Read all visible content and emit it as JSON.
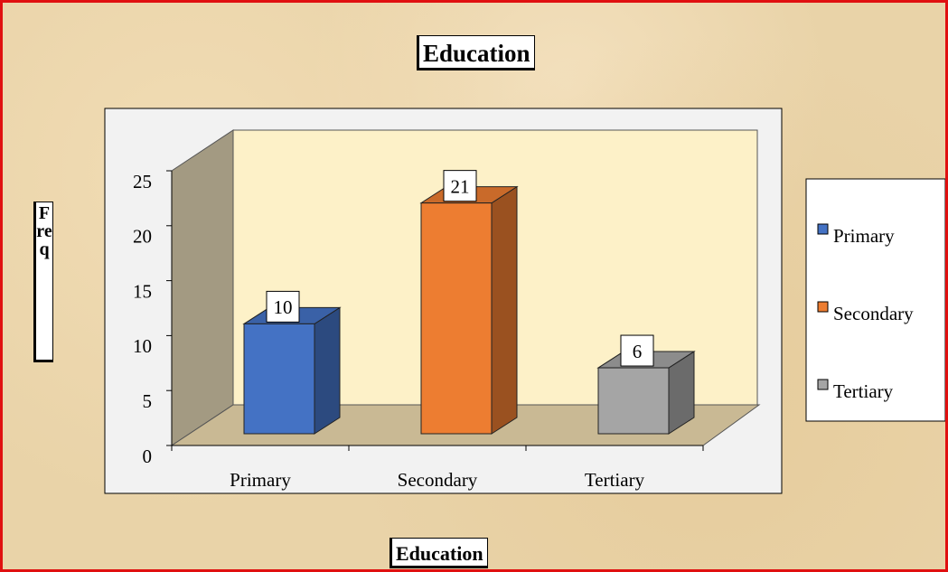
{
  "chart_data": {
    "type": "bar3d",
    "title": "Education",
    "x_label": "Education",
    "y_label": "Freq",
    "categories": [
      "Primary",
      "Secondary",
      "Tertiary"
    ],
    "values": [
      10,
      21,
      6
    ],
    "colors": [
      "#4472c4",
      "#ed7d31",
      "#a5a5a5"
    ],
    "ylim": [
      0,
      25
    ],
    "yticks": [
      0,
      5,
      10,
      15,
      20,
      25
    ],
    "legend": "right"
  }
}
